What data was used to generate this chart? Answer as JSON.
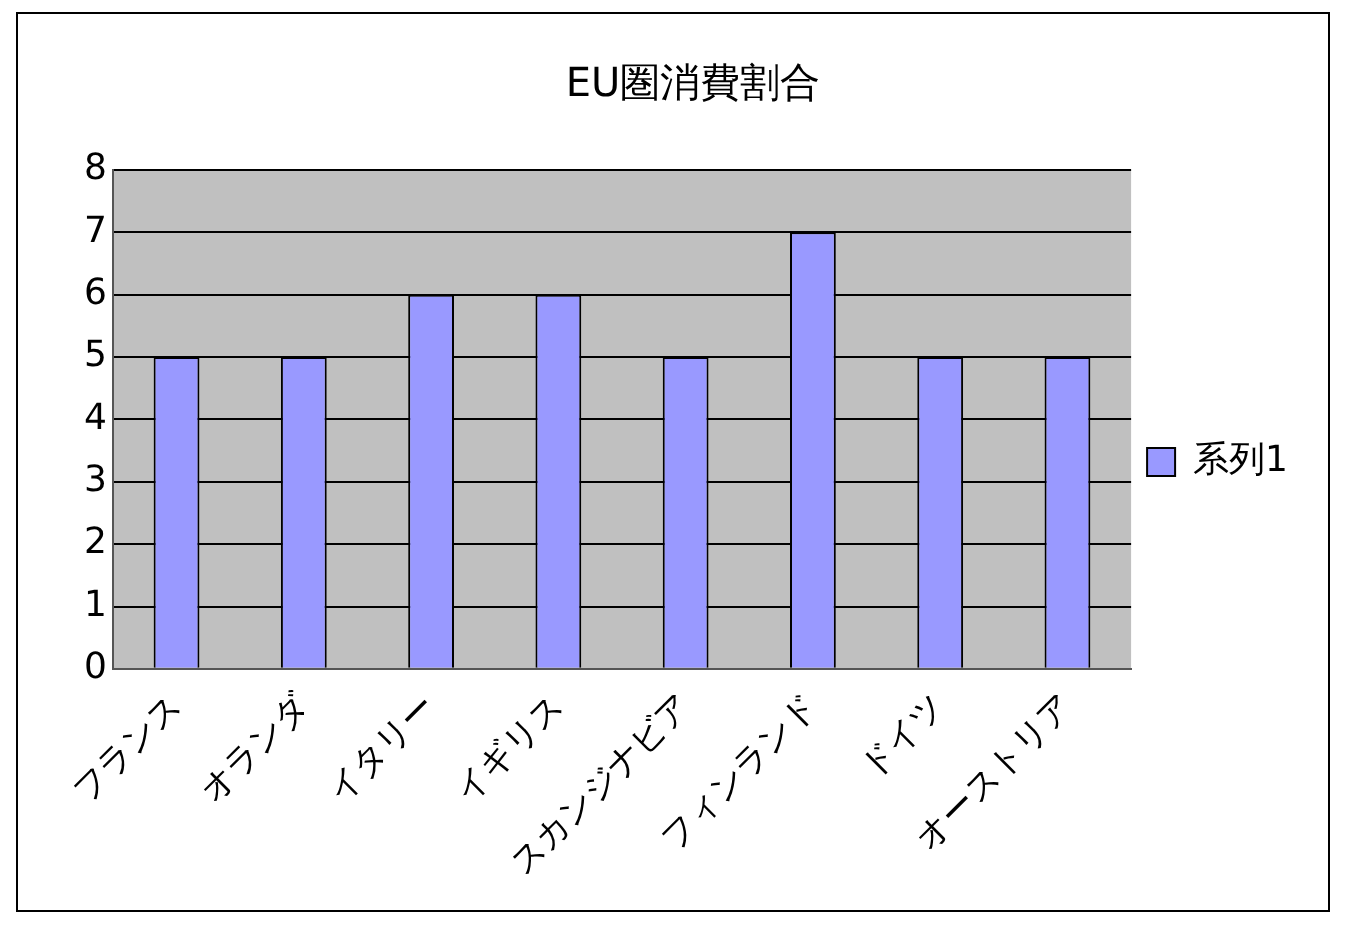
{
  "chart_data": {
    "type": "bar",
    "title": "EU圏消費割合",
    "categories": [
      "フランス",
      "オランダ",
      "イタリー",
      "イギリス",
      "スカンジナビア",
      "フィンランド",
      "ドイツ",
      "オーストリア"
    ],
    "series": [
      {
        "name": "系列1",
        "color": "#9999ff",
        "values": [
          5,
          5,
          6,
          6,
          5,
          7,
          5,
          5
        ]
      }
    ],
    "ylim": [
      0,
      8
    ],
    "yticks": [
      0,
      1,
      2,
      3,
      4,
      5,
      6,
      7,
      8
    ],
    "grid": "y",
    "legend": "right"
  }
}
